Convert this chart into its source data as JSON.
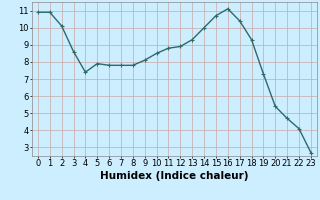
{
  "x": [
    0,
    1,
    2,
    3,
    4,
    5,
    6,
    7,
    8,
    9,
    10,
    11,
    12,
    13,
    14,
    15,
    16,
    17,
    18,
    19,
    20,
    21,
    22,
    23
  ],
  "y": [
    10.9,
    10.9,
    10.1,
    8.6,
    7.4,
    7.9,
    7.8,
    7.8,
    7.8,
    8.1,
    8.5,
    8.8,
    8.9,
    9.3,
    10.0,
    10.7,
    11.1,
    10.4,
    9.3,
    7.3,
    5.4,
    4.7,
    4.1,
    2.7
  ],
  "line_color": "#2d6b6b",
  "marker": "+",
  "marker_size": 3,
  "bg_color": "#cceeff",
  "grid_color": "#c8a8a8",
  "xlabel": "Humidex (Indice chaleur)",
  "xlabel_fontsize": 7.5,
  "xlim": [
    -0.5,
    23.5
  ],
  "ylim": [
    2.5,
    11.5
  ],
  "yticks": [
    3,
    4,
    5,
    6,
    7,
    8,
    9,
    10,
    11
  ],
  "xticks": [
    0,
    1,
    2,
    3,
    4,
    5,
    6,
    7,
    8,
    9,
    10,
    11,
    12,
    13,
    14,
    15,
    16,
    17,
    18,
    19,
    20,
    21,
    22,
    23
  ],
  "tick_fontsize": 6,
  "linewidth": 1.0
}
